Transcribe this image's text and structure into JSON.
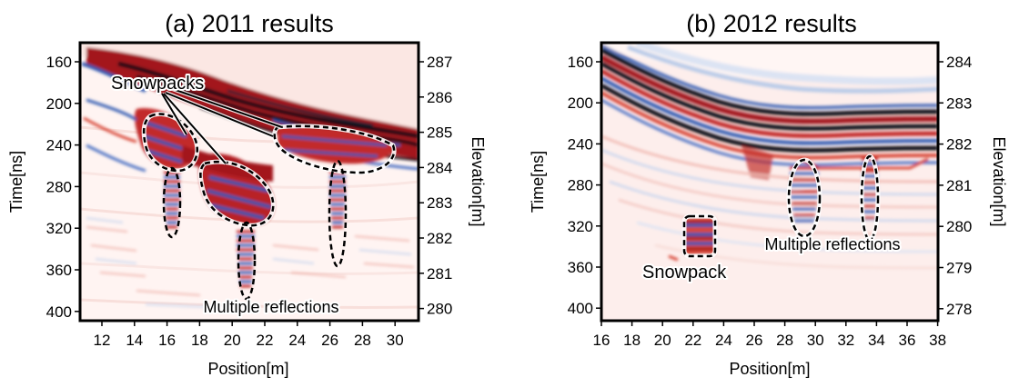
{
  "figure": {
    "panels": [
      {
        "id": "a",
        "title": "(a) 2011 results",
        "xlabel": "Position[m]",
        "ylabel_left": "Time[ns]",
        "ylabel_right": "Elevation[m]",
        "x_ticks": [
          "12",
          "14",
          "16",
          "18",
          "20",
          "22",
          "24",
          "26",
          "28",
          "30"
        ],
        "y_ticks": [
          "160",
          "200",
          "240",
          "280",
          "320",
          "360",
          "400"
        ],
        "elev_ticks": [
          "287",
          "286",
          "285",
          "284",
          "283",
          "282",
          "281",
          "280"
        ],
        "annotations": {
          "snowpacks": "Snowpacks",
          "multiple": "Multiple reflections"
        }
      },
      {
        "id": "b",
        "title": "(b) 2012 results",
        "xlabel": "Position[m]",
        "ylabel_left": "Time[ns]",
        "ylabel_right": "Elevation[m]",
        "x_ticks": [
          "16",
          "18",
          "20",
          "22",
          "24",
          "26",
          "28",
          "30",
          "32",
          "34",
          "36",
          "38"
        ],
        "y_ticks": [
          "160",
          "200",
          "240",
          "280",
          "320",
          "360",
          "400"
        ],
        "elev_ticks": [
          "284",
          "283",
          "282",
          "281",
          "280",
          "279",
          "278"
        ],
        "annotations": {
          "snowpack": "Snowpack",
          "multiple": "Multiple reflections"
        }
      }
    ],
    "colors": {
      "dark_red": "#a3161e",
      "red": "#d84637",
      "pink": "#f3c6c0",
      "blue": "#2c56b0",
      "light_blue": "#b9cbe8",
      "black": "#101018",
      "background": "#fff4f2"
    }
  }
}
